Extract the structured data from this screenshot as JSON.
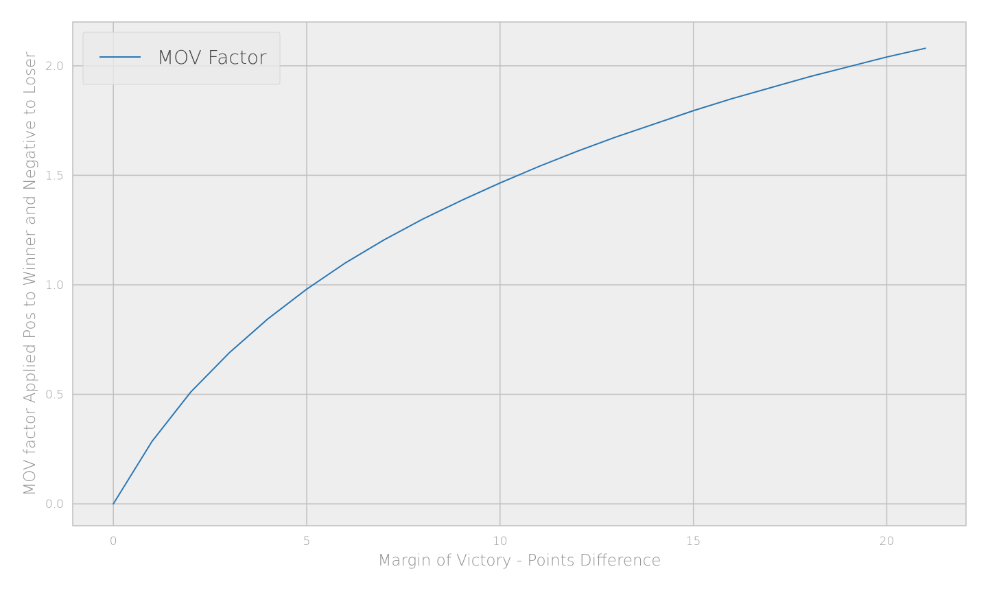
{
  "colors": {
    "series": "#2a77b4",
    "plot_background": "#eeeeee",
    "grid": "#c0c0c0",
    "frame": "#bdbdbd",
    "legend_background": "#eaeaea",
    "legend_border": "#d4d4d4"
  },
  "chart_data": {
    "type": "line",
    "title": "",
    "xlabel": "Margin of Victory - Points Difference",
    "ylabel": "MOV factor Applied Pos to Winner and Negative to Loser",
    "xlim": [
      -1.05,
      22.05
    ],
    "ylim": [
      -0.1,
      2.2
    ],
    "xticks": [
      0,
      5,
      10,
      15,
      20
    ],
    "xtick_labels": [
      "0",
      "5",
      "10",
      "15",
      "20"
    ],
    "yticks": [
      0.0,
      0.5,
      1.0,
      1.5,
      2.0
    ],
    "ytick_labels": [
      "0.0",
      "0.5",
      "1.0",
      "1.5",
      "2.0"
    ],
    "grid": true,
    "legend_position": "top-left",
    "series": [
      {
        "name": "MOV Factor",
        "x": [
          0,
          1,
          2,
          3,
          4,
          5,
          6,
          7,
          8,
          9,
          10,
          11,
          12,
          13,
          14,
          15,
          16,
          17,
          18,
          19,
          20,
          21
        ],
        "y": [
          0.0,
          0.285,
          0.51,
          0.69,
          0.845,
          0.98,
          1.1,
          1.205,
          1.3,
          1.385,
          1.465,
          1.54,
          1.61,
          1.675,
          1.735,
          1.795,
          1.85,
          1.9,
          1.95,
          1.995,
          2.04,
          2.08
        ]
      }
    ]
  }
}
